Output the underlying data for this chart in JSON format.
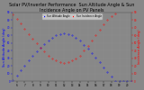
{
  "title": "Solar PV/Inverter Performance  Sun Altitude Angle & Sun Incidence Angle on PV Panels",
  "ylabel_left": "Sun Altitude Angle (deg)",
  "ylabel_right": "Incidence Angle (deg)",
  "background_color": "#888888",
  "plot_bg_color": "#888888",
  "grid_color": "#999999",
  "blue_color": "#0000ff",
  "red_color": "#ff0000",
  "ylim_left": [
    0,
    90
  ],
  "ylim_right": [
    0,
    90
  ],
  "xlim": [
    5.5,
    20.5
  ],
  "title_fontsize": 3.5,
  "label_fontsize": 2.5,
  "tick_fontsize": 2.0,
  "marker_size": 0.6,
  "legend_labels": [
    "Sun Altitude Angle",
    "Sun Incidence Angle"
  ],
  "sun_altitude_times": [
    5.5,
    6.0,
    6.5,
    7.0,
    7.5,
    8.0,
    8.5,
    9.0,
    9.5,
    10.0,
    10.5,
    11.0,
    11.5,
    12.0,
    12.5,
    13.0,
    13.5,
    14.0,
    14.5,
    15.0,
    15.5,
    16.0,
    16.5,
    17.0,
    17.5,
    18.0,
    18.5,
    19.0,
    19.5,
    20.0,
    20.5
  ],
  "sun_altitude_values": [
    2,
    8,
    15,
    21,
    28,
    34,
    39,
    44,
    49,
    53,
    57,
    60,
    62,
    63,
    62,
    60,
    57,
    53,
    48,
    43,
    37,
    31,
    25,
    18,
    12,
    6,
    1,
    0,
    0,
    0,
    0
  ],
  "incidence_times": [
    5.5,
    6.0,
    6.5,
    7.0,
    7.5,
    8.0,
    8.5,
    9.0,
    9.5,
    10.0,
    10.5,
    11.0,
    11.5,
    12.0,
    12.5,
    13.0,
    13.5,
    14.0,
    14.5,
    15.0,
    15.5,
    16.0,
    16.5,
    17.0,
    17.5,
    18.0,
    18.5
  ],
  "incidence_values": [
    88,
    82,
    76,
    69,
    62,
    56,
    50,
    44,
    39,
    34,
    30,
    27,
    25,
    24,
    25,
    27,
    30,
    34,
    40,
    46,
    53,
    60,
    67,
    74,
    80,
    85,
    89
  ],
  "x_ticks": [
    6,
    7,
    8,
    9,
    10,
    11,
    12,
    13,
    14,
    15,
    16,
    17,
    18,
    19,
    20
  ],
  "y_ticks_left": [
    0,
    10,
    20,
    30,
    40,
    50,
    60,
    70,
    80,
    90
  ],
  "y_ticks_right": [
    0,
    10,
    20,
    30,
    40,
    50,
    60,
    70,
    80,
    90
  ]
}
